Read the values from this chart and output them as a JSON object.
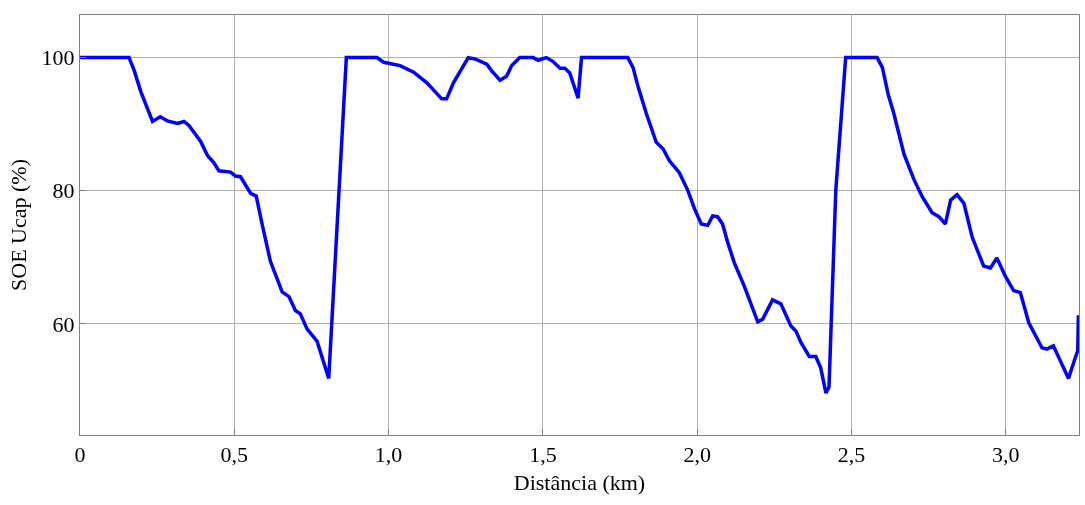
{
  "chart_data": {
    "type": "line",
    "xlabel": "Distância (km)",
    "ylabel": "SOE Ucap (%)",
    "xlim": [
      0,
      3.237
    ],
    "ylim": [
      43.3,
      106.4
    ],
    "xticks": [
      0,
      {
        "value": 0.5,
        "label": "0,5"
      },
      {
        "value": 1,
        "label": "1,0"
      },
      {
        "value": 1.5,
        "label": "1,5"
      },
      {
        "value": 2,
        "label": "2,0"
      },
      {
        "value": 2.5,
        "label": "2,5"
      },
      {
        "value": 3,
        "label": "3,0"
      }
    ],
    "yticks": [
      60,
      80,
      100
    ],
    "grid": true,
    "marker": "none",
    "line_style": "solid",
    "series": [
      {
        "color": "#0000ff",
        "x": [
          0,
          0.159,
          0.176,
          0.197,
          0.235,
          0.26,
          0.283,
          0.316,
          0.337,
          0.353,
          0.391,
          0.413,
          0.434,
          0.45,
          0.488,
          0.504,
          0.52,
          0.553,
          0.571,
          0.59,
          0.617,
          0.655,
          0.677,
          0.698,
          0.714,
          0.736,
          0.768,
          0.806,
          0.863,
          0.962,
          0.984,
          1.037,
          1.081,
          1.124,
          1.172,
          1.188,
          1.21,
          1.258,
          1.28,
          1.318,
          1.334,
          1.361,
          1.382,
          1.399,
          1.425,
          1.468,
          1.485,
          1.511,
          1.533,
          1.555,
          1.571,
          1.587,
          1.614,
          1.625,
          1.775,
          1.792,
          1.808,
          1.835,
          1.867,
          1.889,
          1.91,
          1.942,
          1.969,
          1.991,
          2.013,
          2.034,
          2.05,
          2.066,
          2.082,
          2.099,
          2.12,
          2.153,
          2.196,
          2.212,
          2.244,
          2.271,
          2.303,
          2.32,
          2.336,
          2.363,
          2.384,
          2.4,
          2.417,
          2.427,
          2.449,
          2.481,
          2.583,
          2.6,
          2.619,
          2.637,
          2.67,
          2.702,
          2.729,
          2.761,
          2.783,
          2.804,
          2.821,
          2.842,
          2.864,
          2.891,
          2.928,
          2.95,
          2.971,
          2.998,
          3.025,
          3.047,
          3.074,
          3.117,
          3.133,
          3.154,
          3.203,
          3.225,
          3.233,
          3.235
        ],
        "values": [
          100,
          100,
          98,
          94.9,
          90.4,
          91.1,
          90.5,
          90.1,
          90.4,
          89.8,
          87.4,
          85.3,
          84.2,
          83,
          82.8,
          82.2,
          82.1,
          79.6,
          79.2,
          75,
          69.4,
          64.8,
          64.1,
          62,
          61.5,
          59.2,
          57.4,
          51.8,
          100,
          100,
          99.3,
          98.8,
          97.8,
          96.2,
          93.8,
          93.8,
          96.2,
          100,
          99.8,
          99,
          98,
          96.6,
          97.2,
          98.8,
          100,
          100,
          99.6,
          100,
          99.4,
          98.4,
          98.4,
          97.7,
          93.9,
          100,
          100,
          98.5,
          95.7,
          91.6,
          87.3,
          86.3,
          84.5,
          82.7,
          80.1,
          77.3,
          75,
          74.8,
          76.2,
          76.1,
          75,
          72.2,
          69.2,
          65.6,
          60.3,
          60.7,
          63.6,
          63,
          59.7,
          58.9,
          57.2,
          55.1,
          55.1,
          53.4,
          49.6,
          50.5,
          80.1,
          100,
          100,
          98.5,
          94.4,
          91.6,
          85.5,
          81.7,
          79.1,
          76.7,
          76.1,
          75,
          78.6,
          79.4,
          78.1,
          73,
          68.7,
          68.4,
          69.9,
          67.2,
          65,
          64.7,
          60.2,
          56.4,
          56.2,
          56.7,
          51.8,
          54.9,
          56,
          61.3
        ]
      }
    ]
  }
}
